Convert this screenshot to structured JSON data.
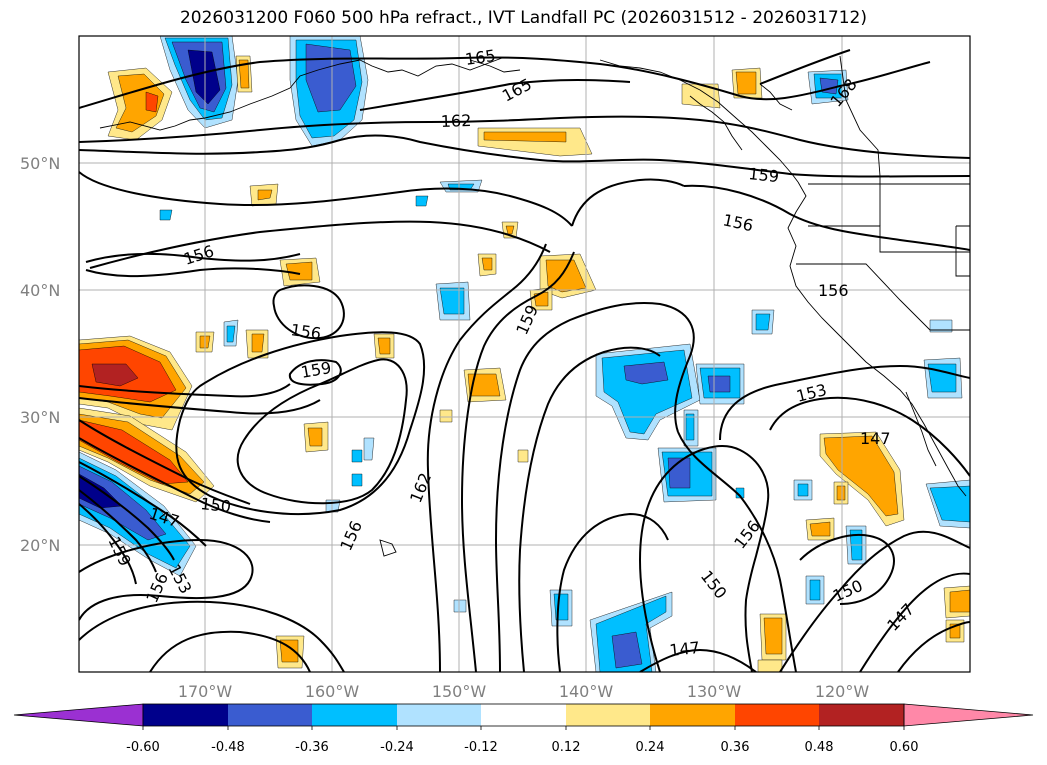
{
  "title": "2026031200 F060 500 hPa refract., IVT Landfall PC (2026031512 - 2026031712)",
  "lat_labels": [
    "50°N",
    "40°N",
    "30°N",
    "20°N"
  ],
  "lon_labels": [
    "170°W",
    "160°W",
    "150°W",
    "140°W",
    "130°W",
    "120°W"
  ],
  "contour_labels": [
    "165",
    "165",
    "162",
    "168",
    "159",
    "156",
    "156",
    "156",
    "156",
    "159",
    "159",
    "162",
    "153",
    "147",
    "150",
    "147",
    "156",
    "153",
    "159",
    "156",
    "156",
    "150",
    "150",
    "147",
    "147"
  ],
  "colorbar": {
    "ticks": [
      "-0.60",
      "-0.48",
      "-0.36",
      "-0.24",
      "-0.12",
      "0.12",
      "0.24",
      "0.36",
      "0.48",
      "0.60"
    ],
    "colors": [
      "#9b30d2",
      "#00008b",
      "#3a5cd0",
      "#00bfff",
      "#b0e2ff",
      "#ffffff",
      "#ffe88a",
      "#ffa500",
      "#ff4500",
      "#b22222",
      "#ff88a8"
    ]
  },
  "shading_colors": {
    "neg_light": "#b0e2ff",
    "neg_mid": "#00bfff",
    "neg_strong": "#3a5cd0",
    "neg_max": "#00008b",
    "pos_light": "#ffe88a",
    "pos_mid": "#ffa500",
    "pos_strong": "#ff4500",
    "pos_max": "#b22222"
  }
}
